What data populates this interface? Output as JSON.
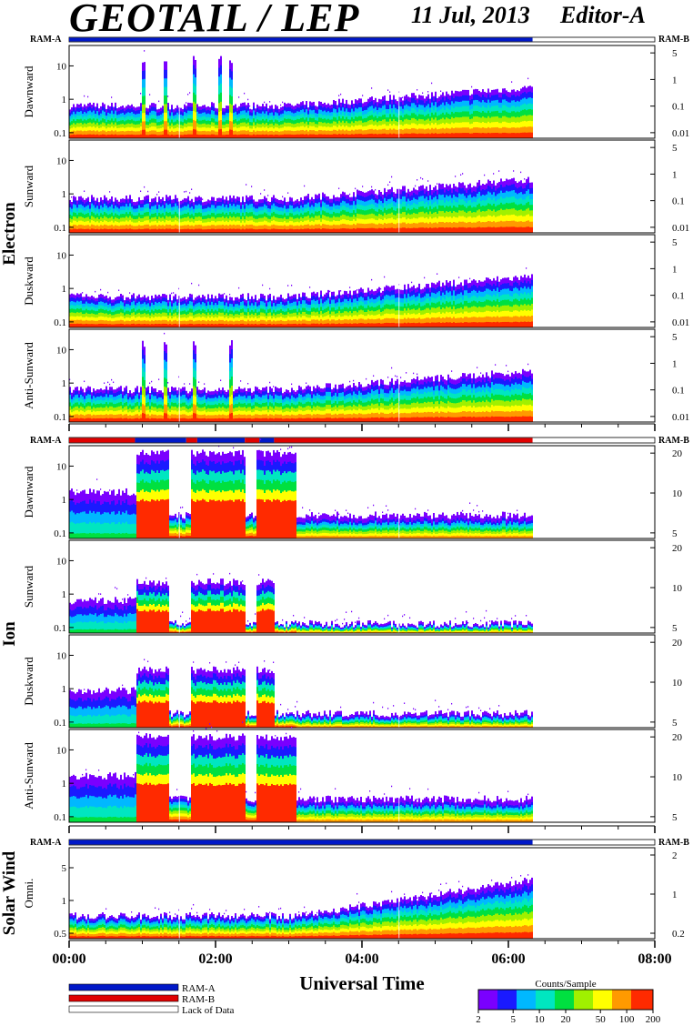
{
  "header": {
    "title": "GEOTAIL / LEP",
    "date": "11 Jul, 2013",
    "editor": "Editor-A"
  },
  "colors": {
    "ram_a": "#0018c8",
    "ram_b": "#e00000",
    "lack_of_data": "#ffffff",
    "colorbar": [
      "#7a00ff",
      "#1a1aff",
      "#00b8ff",
      "#00e6c0",
      "#00e040",
      "#a0f000",
      "#ffff00",
      "#ff9a00",
      "#ff2a00"
    ]
  },
  "chart_data": {
    "type": "heatmap",
    "xlabel": "Universal Time",
    "x_ticks": [
      "00:00",
      "02:00",
      "04:00",
      "06:00",
      "08:00"
    ],
    "xlim_hours": [
      0,
      8
    ],
    "data_end_hours": 6.33,
    "groups": [
      {
        "name": "Electron",
        "ram_bar": {
          "left_label": "RAM-A",
          "right_label": "RAM-B",
          "segments": [
            {
              "from": 0,
              "to": 6.33,
              "mode": "RAM-A"
            }
          ]
        },
        "panels": [
          {
            "label": "Dawnward",
            "y_left_ticks": [
              "10",
              "1",
              "0.1"
            ],
            "y_right_ticks": [
              "5",
              "1",
              "0.1",
              "0.01"
            ],
            "level": 0.35,
            "ramp_from_hour": 3.0,
            "ramp_to_level": 0.55,
            "spikes": [
              1.0,
              1.3,
              1.7,
              2.05,
              2.2
            ]
          },
          {
            "label": "Sunward",
            "y_left_ticks": [
              "10",
              "1",
              "0.1"
            ],
            "y_right_ticks": [
              "5",
              "1",
              "0.1",
              "0.01"
            ],
            "level": 0.37,
            "ramp_from_hour": 3.0,
            "ramp_to_level": 0.58,
            "spikes": []
          },
          {
            "label": "Duskward",
            "y_left_ticks": [
              "10",
              "1",
              "0.1"
            ],
            "y_right_ticks": [
              "5",
              "1",
              "0.1",
              "0.01"
            ],
            "level": 0.33,
            "ramp_from_hour": 3.0,
            "ramp_to_level": 0.55,
            "spikes": []
          },
          {
            "label": "Anti-Sunward",
            "y_left_ticks": [
              "10",
              "1",
              "0.1"
            ],
            "y_right_ticks": [
              "5",
              "1",
              "0.1",
              "0.01"
            ],
            "level": 0.35,
            "ramp_from_hour": 3.0,
            "ramp_to_level": 0.55,
            "spikes": [
              1.0,
              1.3,
              1.7,
              2.2
            ]
          }
        ]
      },
      {
        "name": "Ion",
        "ram_bar": {
          "left_label": "RAM-A",
          "right_label": "RAM-B",
          "segments": [
            {
              "from": 0,
              "to": 0.9,
              "mode": "RAM-B"
            },
            {
              "from": 0.9,
              "to": 1.6,
              "mode": "RAM-A"
            },
            {
              "from": 1.6,
              "to": 1.75,
              "mode": "RAM-B"
            },
            {
              "from": 1.75,
              "to": 2.4,
              "mode": "RAM-A"
            },
            {
              "from": 2.4,
              "to": 2.6,
              "mode": "RAM-B"
            },
            {
              "from": 2.6,
              "to": 2.8,
              "mode": "RAM-A"
            },
            {
              "from": 2.8,
              "to": 6.33,
              "mode": "RAM-B"
            }
          ]
        },
        "panels": [
          {
            "label": "Dawnward",
            "y_left_ticks": [
              "10",
              "1",
              "0.1"
            ],
            "y_right_ticks": [
              "20",
              "10",
              "5"
            ],
            "level": 0.25,
            "bursts": [
              [
                0.9,
                1.35
              ],
              [
                1.65,
                2.4
              ],
              [
                2.55,
                3.1
              ]
            ],
            "burst_level": 0.92
          },
          {
            "label": "Sunward",
            "y_left_ticks": [
              "10",
              "1",
              "0.1"
            ],
            "y_right_ticks": [
              "20",
              "10",
              "5"
            ],
            "level": 0.1,
            "bursts": [
              [
                0.9,
                1.35
              ],
              [
                1.65,
                2.4
              ],
              [
                2.55,
                2.8
              ]
            ],
            "burst_level": 0.55
          },
          {
            "label": "Duskward",
            "y_left_ticks": [
              "10",
              "1",
              "0.1"
            ],
            "y_right_ticks": [
              "20",
              "10",
              "5"
            ],
            "level": 0.15,
            "bursts": [
              [
                0.9,
                1.35
              ],
              [
                1.65,
                2.4
              ],
              [
                2.55,
                2.8
              ]
            ],
            "burst_level": 0.62
          },
          {
            "label": "Anti-Sunward",
            "y_left_ticks": [
              "10",
              "1",
              "0.1"
            ],
            "y_right_ticks": [
              "20",
              "10",
              "5"
            ],
            "level": 0.25,
            "bursts": [
              [
                0.9,
                1.35
              ],
              [
                1.65,
                2.4
              ],
              [
                2.55,
                3.1
              ]
            ],
            "burst_level": 0.92
          }
        ]
      },
      {
        "name": "Solar Wind",
        "ram_bar": {
          "left_label": "RAM-A",
          "right_label": "RAM-B",
          "segments": [
            {
              "from": 0,
              "to": 6.33,
              "mode": "RAM-A"
            }
          ]
        },
        "panels": [
          {
            "label": "Omni.",
            "y_left_ticks": [
              "5",
              "1",
              "0.5"
            ],
            "y_right_ticks": [
              "2",
              "1",
              "0.2"
            ],
            "level": 0.25,
            "ramp_from_hour": 3.1,
            "ramp_to_level": 0.65
          }
        ]
      }
    ],
    "legend": {
      "items": [
        {
          "label": "RAM-A",
          "color_key": "ram_a"
        },
        {
          "label": "RAM-B",
          "color_key": "ram_b"
        },
        {
          "label": "Lack of Data",
          "color_key": "lack_of_data"
        }
      ]
    },
    "colorbar": {
      "title": "Counts/Sample",
      "ticks": [
        "2",
        "5",
        "10",
        "20",
        "50",
        "100",
        "200"
      ]
    }
  }
}
